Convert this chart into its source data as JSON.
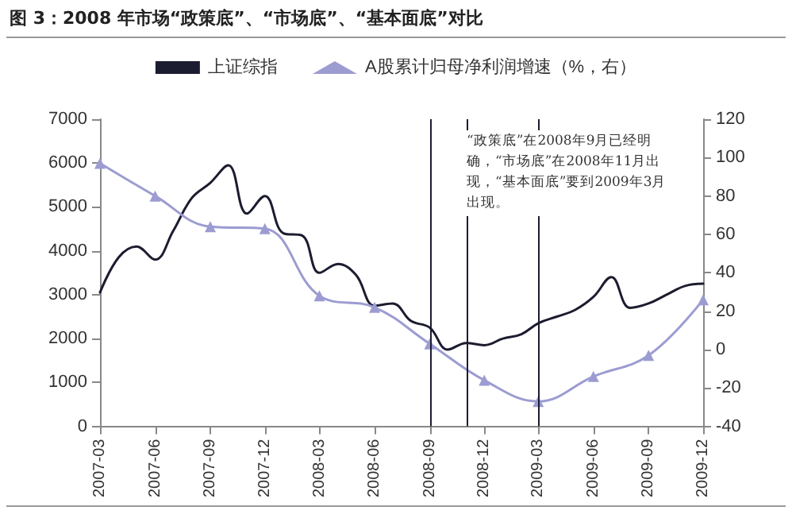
{
  "chart_data": {
    "type": "line",
    "title": "图 3：2008 年市场“政策底”、“市场底”、“基本面底”对比",
    "x": [
      "2007-03",
      "2007-04",
      "2007-05",
      "2007-06",
      "2007-07",
      "2007-08",
      "2007-09",
      "2007-10",
      "2007-11",
      "2007-12",
      "2008-01",
      "2008-02",
      "2008-03",
      "2008-04",
      "2008-05",
      "2008-06",
      "2008-07",
      "2008-08",
      "2008-09",
      "2008-10",
      "2008-11",
      "2008-12",
      "2009-01",
      "2009-02",
      "2009-03",
      "2009-04",
      "2009-05",
      "2009-06",
      "2009-07",
      "2009-08",
      "2009-09",
      "2009-10",
      "2009-11",
      "2009-12"
    ],
    "series": [
      {
        "name": "上证综指",
        "color": "#1c1c30",
        "marker": "none",
        "values": [
          3050,
          3850,
          4100,
          3800,
          4450,
          5200,
          5550,
          5950,
          4850,
          5250,
          4400,
          4350,
          3500,
          3700,
          3450,
          2750,
          2800,
          2400,
          2250,
          1750,
          1900,
          1850,
          2000,
          2100,
          2350,
          2500,
          2650,
          2950,
          3400,
          2700,
          2800,
          3000,
          3200,
          3250
        ]
      },
      {
        "name": "A股累计归母净利润增速（%，右）",
        "color": "#9c9cd2",
        "marker": "triangle",
        "axis": "y2",
        "x": [
          "2007-03",
          "2007-06",
          "2007-09",
          "2007-12",
          "2008-03",
          "2008-06",
          "2008-09",
          "2008-12",
          "2009-03",
          "2009-06",
          "2009-09",
          "2009-12"
        ],
        "values": [
          97,
          80,
          64,
          63,
          28,
          22,
          3,
          -16,
          -27,
          -14,
          -3,
          26
        ]
      }
    ],
    "xlim": [
      "2007-03",
      "2009-12"
    ],
    "xticks": [
      "2007-03",
      "2007-06",
      "2007-09",
      "2007-12",
      "2008-03",
      "2008-06",
      "2008-09",
      "2008-12",
      "2009-03",
      "2009-06",
      "2009-09",
      "2009-12"
    ],
    "ylim": [
      0,
      7000
    ],
    "yticks": [
      0,
      1000,
      2000,
      3000,
      4000,
      5000,
      6000,
      7000
    ],
    "y2lim": [
      -40,
      120
    ],
    "y2ticks": [
      -40,
      -20,
      0,
      20,
      40,
      60,
      80,
      100,
      120
    ],
    "ref_lines": [
      {
        "axis": "x",
        "value": "2008-09",
        "color": "#1c1c30"
      },
      {
        "axis": "x",
        "value": "2008-11",
        "color": "#1c1c30"
      },
      {
        "axis": "x",
        "value": "2009-03",
        "color": "#1c1c30"
      }
    ],
    "annotations": [
      "“政策底”在2008年9月已经明确，“市场底”在2008年11月出现，“基本面底”要到2009年3月出现。"
    ],
    "grid": false,
    "legend": "top"
  }
}
